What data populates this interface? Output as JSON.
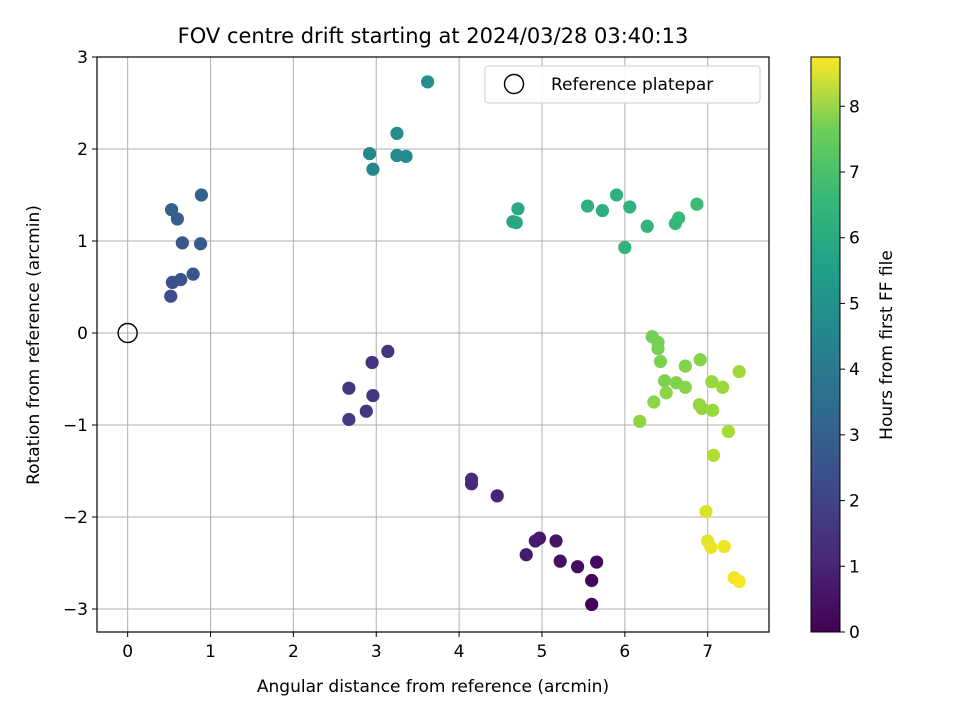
{
  "chart_data": {
    "type": "scatter",
    "title": "FOV centre drift starting at 2024/03/28 03:40:13",
    "xlabel": "Angular distance from reference (arcmin)",
    "ylabel": "Rotation from reference (arcmin)",
    "xlim": [
      -0.37,
      7.74
    ],
    "ylim": [
      -3.25,
      3.0
    ],
    "x_ticks": [
      0,
      1,
      2,
      3,
      4,
      5,
      6,
      7
    ],
    "y_ticks": [
      -3,
      -2,
      -1,
      0,
      1,
      2,
      3
    ],
    "x_tick_labels": [
      "0",
      "1",
      "2",
      "3",
      "4",
      "5",
      "6",
      "7"
    ],
    "y_tick_labels": [
      "−3",
      "−2",
      "−1",
      "0",
      "1",
      "2",
      "3"
    ],
    "grid": true,
    "legend": {
      "placement": "top-right",
      "entries": [
        "Reference platepar"
      ]
    },
    "reference_point": {
      "x": 0,
      "y": 0
    },
    "colorbar": {
      "label": "Hours from first FF file",
      "range": [
        0,
        8.75
      ],
      "ticks": [
        0,
        1,
        2,
        3,
        4,
        5,
        6,
        7,
        8
      ],
      "tick_labels": [
        "0",
        "1",
        "2",
        "3",
        "4",
        "5",
        "6",
        "7",
        "8"
      ],
      "colormap": "viridis"
    },
    "points": [
      {
        "x": 5.6,
        "y": -2.95,
        "t": 0.05
      },
      {
        "x": 5.6,
        "y": -2.69,
        "t": 0.15
      },
      {
        "x": 5.66,
        "y": -2.49,
        "t": 0.25
      },
      {
        "x": 5.43,
        "y": -2.54,
        "t": 0.35
      },
      {
        "x": 5.22,
        "y": -2.48,
        "t": 0.45
      },
      {
        "x": 5.17,
        "y": -2.26,
        "t": 0.55
      },
      {
        "x": 4.97,
        "y": -2.23,
        "t": 0.6
      },
      {
        "x": 4.92,
        "y": -2.26,
        "t": 0.7
      },
      {
        "x": 4.81,
        "y": -2.41,
        "t": 0.75
      },
      {
        "x": 4.46,
        "y": -1.77,
        "t": 1.05
      },
      {
        "x": 4.15,
        "y": -1.59,
        "t": 1.15
      },
      {
        "x": 4.15,
        "y": -1.64,
        "t": 1.2
      },
      {
        "x": 3.14,
        "y": -0.2,
        "t": 1.45
      },
      {
        "x": 2.95,
        "y": -0.32,
        "t": 1.5
      },
      {
        "x": 2.96,
        "y": -0.68,
        "t": 1.55
      },
      {
        "x": 2.67,
        "y": -0.6,
        "t": 1.6
      },
      {
        "x": 2.88,
        "y": -0.85,
        "t": 1.65
      },
      {
        "x": 2.67,
        "y": -0.94,
        "t": 1.7
      },
      {
        "x": 0.52,
        "y": 0.4,
        "t": 2.3
      },
      {
        "x": 0.54,
        "y": 0.55,
        "t": 2.4
      },
      {
        "x": 0.64,
        "y": 0.58,
        "t": 2.5
      },
      {
        "x": 0.79,
        "y": 0.64,
        "t": 2.6
      },
      {
        "x": 0.66,
        "y": 0.98,
        "t": 2.7
      },
      {
        "x": 0.88,
        "y": 0.97,
        "t": 2.8
      },
      {
        "x": 0.6,
        "y": 1.24,
        "t": 2.9
      },
      {
        "x": 0.53,
        "y": 1.34,
        "t": 3.0
      },
      {
        "x": 0.89,
        "y": 1.5,
        "t": 3.1
      },
      {
        "x": 2.96,
        "y": 1.78,
        "t": 4.5
      },
      {
        "x": 2.92,
        "y": 1.95,
        "t": 4.6
      },
      {
        "x": 3.25,
        "y": 1.93,
        "t": 4.65
      },
      {
        "x": 3.36,
        "y": 1.92,
        "t": 4.7
      },
      {
        "x": 3.25,
        "y": 2.17,
        "t": 4.75
      },
      {
        "x": 3.62,
        "y": 2.73,
        "t": 4.9
      },
      {
        "x": 4.65,
        "y": 1.21,
        "t": 5.8
      },
      {
        "x": 4.69,
        "y": 1.2,
        "t": 5.85
      },
      {
        "x": 4.71,
        "y": 1.35,
        "t": 5.9
      },
      {
        "x": 5.55,
        "y": 1.38,
        "t": 6.2
      },
      {
        "x": 5.73,
        "y": 1.33,
        "t": 6.25
      },
      {
        "x": 5.9,
        "y": 1.5,
        "t": 6.3
      },
      {
        "x": 6.06,
        "y": 1.37,
        "t": 6.35
      },
      {
        "x": 6.0,
        "y": 0.93,
        "t": 6.4
      },
      {
        "x": 6.27,
        "y": 1.16,
        "t": 6.45
      },
      {
        "x": 6.61,
        "y": 1.19,
        "t": 6.55
      },
      {
        "x": 6.65,
        "y": 1.25,
        "t": 6.6
      },
      {
        "x": 6.87,
        "y": 1.4,
        "t": 6.7
      },
      {
        "x": 6.33,
        "y": -0.04,
        "t": 7.7
      },
      {
        "x": 6.4,
        "y": -0.1,
        "t": 7.72
      },
      {
        "x": 6.4,
        "y": -0.17,
        "t": 7.74
      },
      {
        "x": 6.43,
        "y": -0.31,
        "t": 7.76
      },
      {
        "x": 6.48,
        "y": -0.52,
        "t": 7.78
      },
      {
        "x": 6.62,
        "y": -0.54,
        "t": 7.8
      },
      {
        "x": 6.73,
        "y": -0.36,
        "t": 7.82
      },
      {
        "x": 6.91,
        "y": -0.29,
        "t": 7.84
      },
      {
        "x": 6.73,
        "y": -0.59,
        "t": 7.86
      },
      {
        "x": 6.5,
        "y": -0.65,
        "t": 7.88
      },
      {
        "x": 6.35,
        "y": -0.75,
        "t": 7.9
      },
      {
        "x": 6.18,
        "y": -0.96,
        "t": 7.92
      },
      {
        "x": 6.9,
        "y": -0.78,
        "t": 7.94
      },
      {
        "x": 6.93,
        "y": -0.82,
        "t": 7.96
      },
      {
        "x": 7.05,
        "y": -0.53,
        "t": 7.98
      },
      {
        "x": 7.06,
        "y": -0.84,
        "t": 8.0
      },
      {
        "x": 7.18,
        "y": -0.59,
        "t": 8.02
      },
      {
        "x": 7.38,
        "y": -0.42,
        "t": 8.04
      },
      {
        "x": 7.25,
        "y": -1.07,
        "t": 8.1
      },
      {
        "x": 7.07,
        "y": -1.33,
        "t": 8.2
      },
      {
        "x": 6.98,
        "y": -1.94,
        "t": 8.5
      },
      {
        "x": 7.0,
        "y": -2.26,
        "t": 8.55
      },
      {
        "x": 7.04,
        "y": -2.33,
        "t": 8.6
      },
      {
        "x": 7.2,
        "y": -2.32,
        "t": 8.62
      },
      {
        "x": 7.32,
        "y": -2.66,
        "t": 8.65
      },
      {
        "x": 7.38,
        "y": -2.7,
        "t": 8.7
      }
    ]
  }
}
